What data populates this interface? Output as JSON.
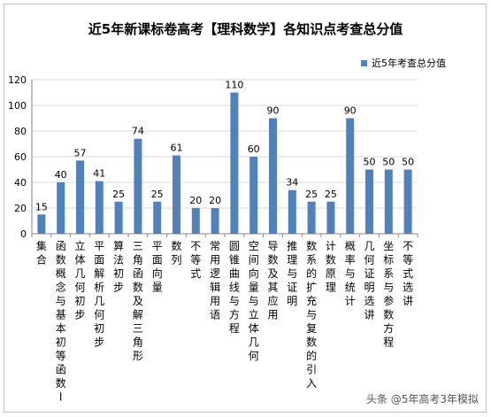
{
  "chart_data": {
    "type": "bar",
    "title": "近5年新课标卷高考【理科数学】各知识点考查总分值",
    "xlabel": "",
    "ylabel": "",
    "ylim": [
      0,
      120
    ],
    "yticks": [
      0,
      20,
      40,
      60,
      80,
      100,
      120
    ],
    "grid": true,
    "legend": "top-right",
    "bar_color": "#4f81bd",
    "categories": [
      "集合",
      "函数概念与基本初等函数I",
      "立体几何初步",
      "平面解析几何初步",
      "算法初步",
      "三角函数及解三角形",
      "平面向量",
      "数列",
      "不等式",
      "常用逻辑用语",
      "圆锥曲线与方程",
      "空间向量与立体几何",
      "导数及其应用",
      "推理与证明",
      "数系的扩充与复数的引入",
      "计数原理",
      "概率与统计",
      "几何证明选讲",
      "坐标系与参数方程",
      "不等式选讲"
    ],
    "series": [
      {
        "name": "近5年考查总分值",
        "values": [
          15,
          40,
          57,
          41,
          25,
          74,
          25,
          61,
          20,
          20,
          110,
          60,
          90,
          34,
          25,
          25,
          90,
          50,
          50,
          50
        ]
      }
    ]
  },
  "watermark": "头条 @5年高考3年模拟"
}
